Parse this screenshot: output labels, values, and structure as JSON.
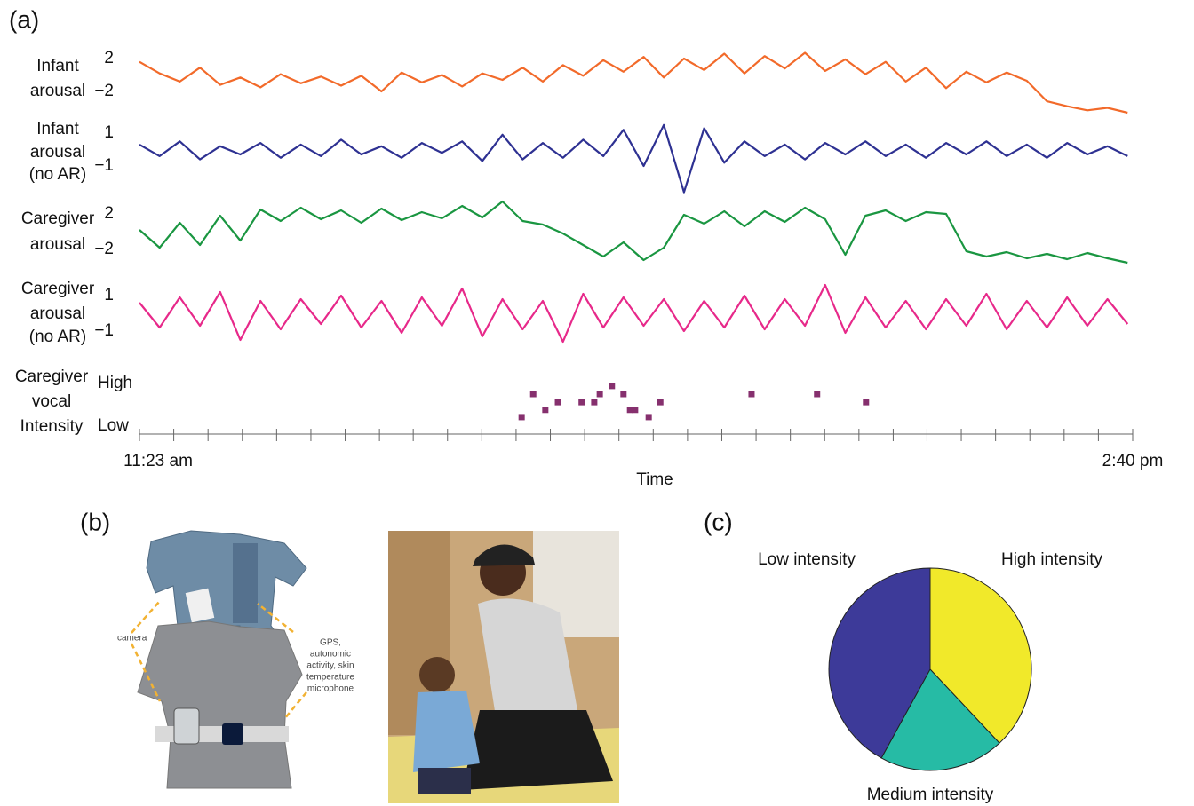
{
  "panel_labels": [
    "(a)",
    "(b)",
    "(c)"
  ],
  "photo_labels": {
    "camera": "camera",
    "sensors": [
      "GPS,",
      "autonomic",
      "activity, skin",
      "temperature",
      "microphone"
    ]
  },
  "chart_data": [
    {
      "type": "line",
      "x": [
        683,
        687,
        691,
        695,
        699,
        703,
        707,
        711,
        715,
        719,
        723,
        727,
        731,
        735,
        739,
        743,
        747,
        751,
        755,
        759,
        763,
        767,
        771,
        775,
        779,
        783,
        787,
        791,
        795,
        799,
        803,
        807,
        811,
        815,
        819,
        823,
        827,
        831,
        835,
        839,
        843,
        847,
        851,
        855,
        859,
        863,
        867,
        871,
        875,
        879
      ],
      "xlim": [
        683,
        880
      ],
      "xticks": [
        {
          "value": 683,
          "label": "11:23 am"
        },
        {
          "value": 880,
          "label": "2:40 pm"
        }
      ],
      "xminor": [
        689.8,
        696.6,
        703.4,
        710.2,
        717.0,
        723.8,
        730.6,
        737.3,
        744.1,
        750.9,
        757.7,
        764.5,
        771.3,
        778.1,
        784.9,
        791.7,
        798.5,
        805.3,
        812.1,
        818.9,
        825.7,
        832.5,
        839.2,
        846.0,
        852.8,
        859.6,
        866.4,
        873.2
      ],
      "xlabel": "Time",
      "series": [
        {
          "name": [
            "Infant",
            "arousal"
          ],
          "color": "#f26a2a",
          "ylim": [
            -5,
            4
          ],
          "yticks": [
            2,
            {
              "value": -2,
              "label": "−2"
            }
          ],
          "values": [
            1.6,
            0.2,
            -0.8,
            0.9,
            -1.2,
            -0.3,
            -1.5,
            0.1,
            -1.0,
            -0.2,
            -1.3,
            -0.1,
            -2.0,
            0.3,
            -0.9,
            0.0,
            -1.4,
            0.2,
            -0.6,
            0.9,
            -0.8,
            1.2,
            -0.1,
            1.8,
            0.4,
            2.2,
            -0.3,
            2.0,
            0.6,
            2.6,
            0.2,
            2.3,
            0.8,
            2.7,
            0.5,
            1.9,
            0.1,
            1.6,
            -0.8,
            0.9,
            -1.6,
            0.4,
            -0.9,
            0.3,
            -0.7,
            -3.2,
            -3.8,
            -4.3,
            -4.0,
            -4.6
          ]
        },
        {
          "name": [
            "Infant",
            "arousal",
            "(no AR)"
          ],
          "color": "#2e3192",
          "ylim": [
            -2.6,
            2
          ],
          "yticks": [
            1,
            {
              "value": -1,
              "label": "−1"
            }
          ],
          "values": [
            0.3,
            -0.4,
            0.5,
            -0.6,
            0.2,
            -0.3,
            0.4,
            -0.5,
            0.3,
            -0.4,
            0.6,
            -0.3,
            0.2,
            -0.5,
            0.4,
            -0.2,
            0.5,
            -0.7,
            0.9,
            -0.6,
            0.4,
            -0.5,
            0.6,
            -0.4,
            1.2,
            -1.0,
            1.5,
            -2.6,
            1.3,
            -0.8,
            0.5,
            -0.4,
            0.3,
            -0.6,
            0.4,
            -0.3,
            0.5,
            -0.4,
            0.3,
            -0.5,
            0.4,
            -0.3,
            0.5,
            -0.4,
            0.3,
            -0.5,
            0.4,
            -0.3,
            0.2,
            -0.4
          ]
        },
        {
          "name": [
            "Caregiver",
            "arousal"
          ],
          "color": "#1a9641",
          "ylim": [
            -4,
            4
          ],
          "yticks": [
            2,
            {
              "value": -2,
              "label": "−2"
            }
          ],
          "values": [
            0.2,
            -1.8,
            1.0,
            -1.5,
            1.8,
            -1.0,
            2.5,
            1.2,
            2.7,
            1.4,
            2.4,
            1.0,
            2.6,
            1.3,
            2.2,
            1.5,
            2.9,
            1.6,
            3.4,
            1.2,
            0.8,
            -0.2,
            -1.5,
            -2.8,
            -1.2,
            -3.2,
            -1.8,
            1.9,
            0.9,
            2.3,
            0.6,
            2.3,
            1.1,
            2.7,
            1.4,
            -2.6,
            1.8,
            2.4,
            1.2,
            2.2,
            2.0,
            -2.2,
            -2.8,
            -2.3,
            -3.0,
            -2.5,
            -3.1,
            -2.4,
            -3.0,
            -3.5
          ]
        },
        {
          "name": [
            "Caregiver",
            "arousal",
            "(no AR)"
          ],
          "color": "#e7298a",
          "ylim": [
            -2,
            2
          ],
          "yticks": [
            1,
            {
              "value": -1,
              "label": "−1"
            }
          ],
          "values": [
            0.6,
            -0.8,
            0.9,
            -0.7,
            1.2,
            -1.5,
            0.7,
            -0.9,
            0.8,
            -0.6,
            1.0,
            -0.8,
            0.7,
            -1.1,
            0.9,
            -0.7,
            1.4,
            -1.3,
            0.8,
            -0.9,
            0.7,
            -1.6,
            1.1,
            -0.8,
            0.9,
            -0.7,
            0.8,
            -1.0,
            0.7,
            -0.8,
            1.0,
            -0.9,
            0.8,
            -0.7,
            1.6,
            -1.1,
            0.9,
            -0.8,
            0.7,
            -0.9,
            0.8,
            -0.7,
            1.1,
            -0.9,
            0.7,
            -0.8,
            0.9,
            -0.7,
            0.8,
            -0.6
          ]
        }
      ]
    },
    {
      "type": "scatter",
      "ylabel": [
        "Caregiver",
        "vocal",
        "Intensity"
      ],
      "xlim": [
        683,
        880
      ],
      "ylim": [
        0,
        1
      ],
      "yticks": [
        {
          "value": 1,
          "label": "High"
        },
        {
          "value": 0,
          "label": "Low"
        }
      ],
      "color": "#86306e",
      "x": [
        758.8,
        761.1,
        763.5,
        766.0,
        770.7,
        773.2,
        774.3,
        776.7,
        779.0,
        780.3,
        781.3,
        784.0,
        786.3,
        804.4,
        817.4,
        827.1
      ],
      "values": [
        0.21,
        0.75,
        0.38,
        0.56,
        0.56,
        0.56,
        0.75,
        0.94,
        0.75,
        0.38,
        0.38,
        0.21,
        0.56,
        0.75,
        0.75,
        0.56
      ]
    },
    {
      "type": "pie",
      "categories": [
        "High intensity",
        "Medium intensity",
        "Low intensity"
      ],
      "values": [
        38,
        20,
        42
      ],
      "colors": [
        "#f1e92a",
        "#26bba5",
        "#3d3a99"
      ]
    }
  ]
}
